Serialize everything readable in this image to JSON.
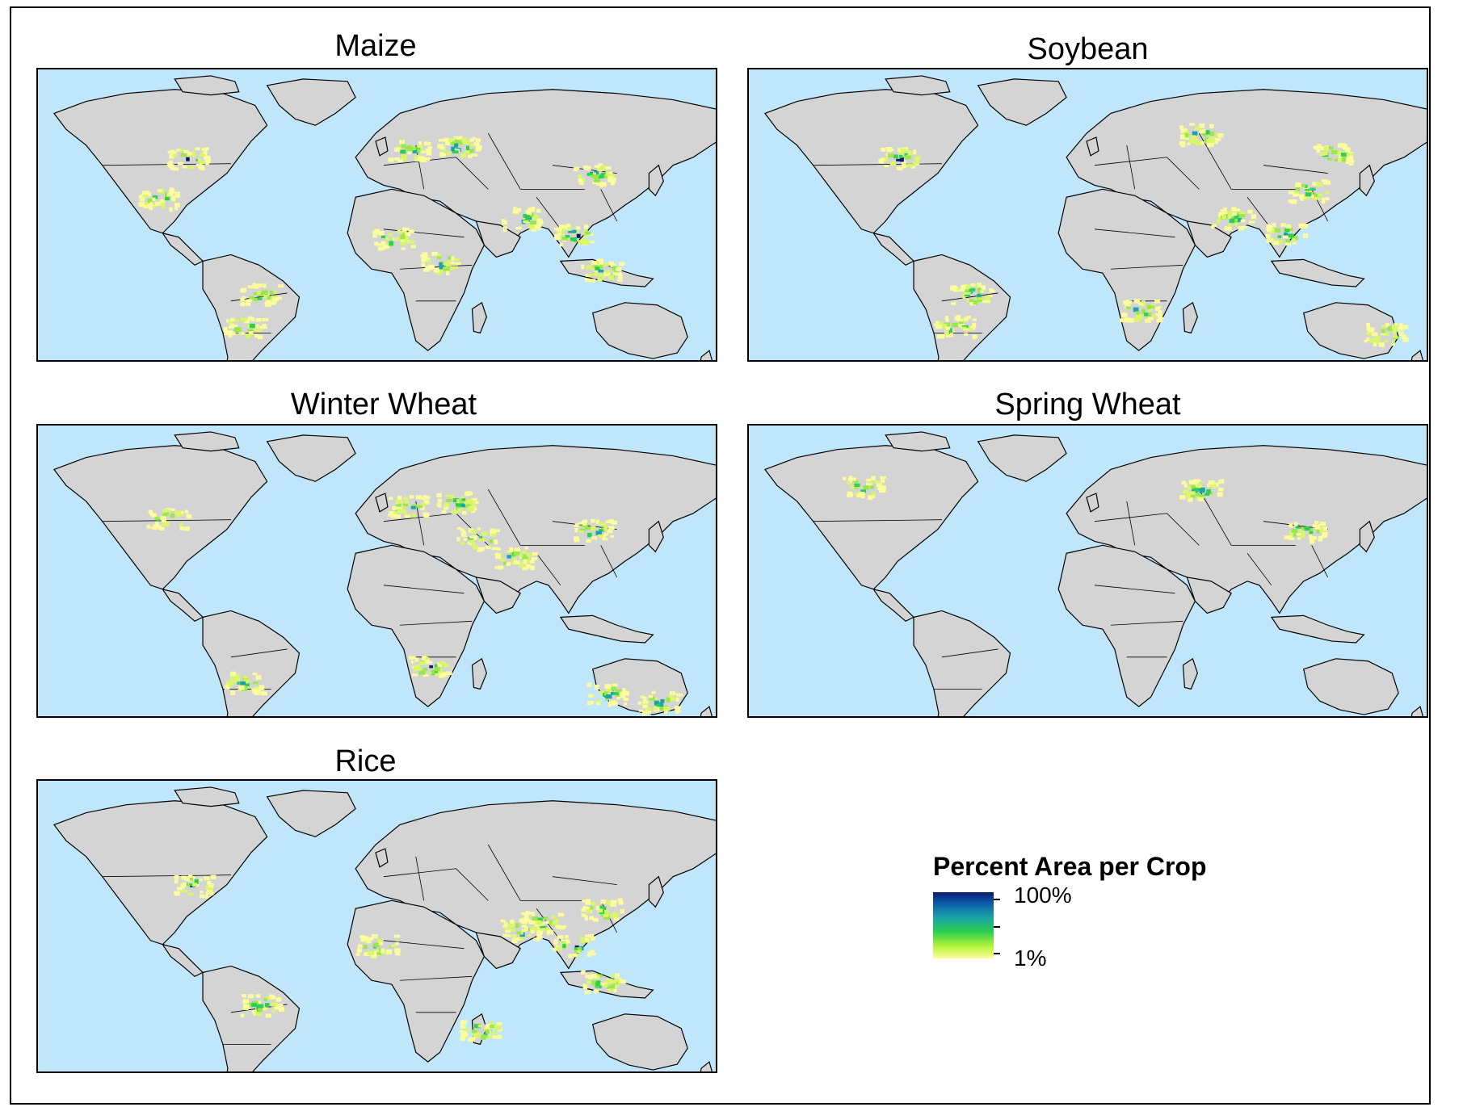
{
  "panels": [
    {
      "id": "maize",
      "title": "Maize",
      "crop_regions": [
        "us-midwest",
        "mexico",
        "europe",
        "ukraine-russia",
        "china-north",
        "india",
        "sub-saharan-africa",
        "east-africa",
        "brazil",
        "argentina",
        "southeast-asia",
        "indonesia"
      ]
    },
    {
      "id": "soybean",
      "title": "Soybean",
      "crop_regions": [
        "us-midwest",
        "russia-kazakhstan",
        "china-northeast",
        "china-central",
        "india",
        "brazil",
        "argentina",
        "southeast-asia",
        "southern-africa",
        "east-australia"
      ]
    },
    {
      "id": "winter-wheat",
      "title": "Winter Wheat",
      "crop_regions": [
        "us-great-plains",
        "europe",
        "ukraine-russia",
        "turkey-iran",
        "pakistan-india",
        "china-north",
        "argentina",
        "southern-africa",
        "southwest-australia",
        "southeast-australia"
      ]
    },
    {
      "id": "spring-wheat",
      "title": "Spring Wheat",
      "crop_regions": [
        "canada-prairies",
        "russia-kazakhstan",
        "china-north"
      ]
    },
    {
      "id": "rice",
      "title": "Rice",
      "crop_regions": [
        "west-africa",
        "india",
        "bangladesh",
        "china-south",
        "southeast-asia",
        "indonesia",
        "madagascar",
        "brazil",
        "us-south"
      ]
    }
  ],
  "legend": {
    "title": "Percent Area per Crop",
    "max_label": "100%",
    "min_label": "1%"
  },
  "colors": {
    "ocean": "#bfe6fb",
    "land": "#d4d4d4",
    "low": "#fbfd9c",
    "mid": "#2ccf4f",
    "high": "#0a1a6e"
  }
}
